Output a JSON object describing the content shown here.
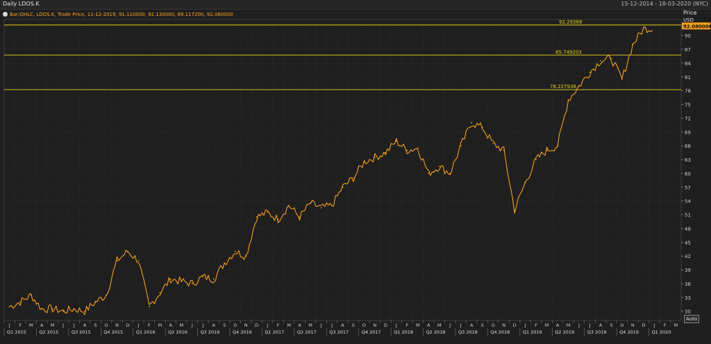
{
  "header": {
    "title": "Daily LDOS.K",
    "date_range": "15-12-2014 - 18-03-2020 (NYC)"
  },
  "legend": {
    "text": "Bar;OHLC, LDOS.K, Trade Price, 11-12-2019, 91.110000, 92.130000, 89.117200, 92.080000"
  },
  "axis": {
    "price_label": "Price",
    "currency_label": "USD",
    "auto_button": "Auto"
  },
  "colors": {
    "background": "#1f1f1f",
    "series": "#f7a01b",
    "hline": "#e8d21e",
    "grid": "#3a3a3a",
    "current_price_box": "#f7a01b"
  },
  "chart_data": {
    "type": "line",
    "series_name": "LDOS.K",
    "y_ticks": [
      30,
      33,
      36,
      39,
      42,
      45,
      48,
      51,
      54,
      57,
      60,
      63,
      66,
      69,
      72,
      75,
      78,
      81,
      84,
      87,
      90
    ],
    "ylim": [
      28,
      93.5
    ],
    "x_month_labels": [
      "J",
      "F",
      "M",
      "A",
      "M",
      "J",
      "J",
      "A",
      "S",
      "O",
      "N",
      "D",
      "J",
      "F",
      "M",
      "A",
      "M",
      "J",
      "J",
      "A",
      "S",
      "O",
      "N",
      "D",
      "J",
      "F",
      "M",
      "A",
      "M",
      "J",
      "J",
      "A",
      "S",
      "O",
      "N",
      "D",
      "J",
      "F",
      "M",
      "A",
      "M",
      "J",
      "J",
      "A",
      "S",
      "O",
      "N",
      "D",
      "J",
      "F",
      "M",
      "A",
      "M",
      "J",
      "J",
      "A",
      "S",
      "O",
      "N",
      "D",
      "J",
      "F",
      "M"
    ],
    "x_quarter_labels": [
      "Q1 2015",
      "Q2 2015",
      "Q3 2015",
      "Q4 2015",
      "Q1 2016",
      "Q2 2016",
      "Q3 2016",
      "Q4 2016",
      "Q1 2017",
      "Q2 2017",
      "Q3 2017",
      "Q4 2017",
      "Q1 2018",
      "Q2 2018",
      "Q3 2018",
      "Q4 2018",
      "Q1 2019",
      "Q2 2019",
      "Q3 2019",
      "Q4 2019",
      "Q1 2020"
    ],
    "horizontal_lines": [
      {
        "value": 92.29368,
        "label": "92.29368"
      },
      {
        "value": 85.749203,
        "label": "85.749203"
      },
      {
        "value": 78.227938,
        "label": "78.227938"
      }
    ],
    "current_price": {
      "value": 92.08,
      "label": "92.080000"
    },
    "monthly_close": [
      {
        "date": "2015-01",
        "value": 31.0
      },
      {
        "date": "2015-02",
        "value": 32.0
      },
      {
        "date": "2015-03",
        "value": 33.5
      },
      {
        "date": "2015-04",
        "value": 30.5
      },
      {
        "date": "2015-05",
        "value": 30.5
      },
      {
        "date": "2015-06",
        "value": 30.0
      },
      {
        "date": "2015-07",
        "value": 30.5
      },
      {
        "date": "2015-08",
        "value": 30.0
      },
      {
        "date": "2015-09",
        "value": 32.0
      },
      {
        "date": "2015-10",
        "value": 33.5
      },
      {
        "date": "2015-11",
        "value": 41.0
      },
      {
        "date": "2015-12",
        "value": 43.0
      },
      {
        "date": "2016-01",
        "value": 41.0
      },
      {
        "date": "2016-02",
        "value": 31.0
      },
      {
        "date": "2016-03",
        "value": 34.0
      },
      {
        "date": "2016-04",
        "value": 37.0
      },
      {
        "date": "2016-05",
        "value": 36.5
      },
      {
        "date": "2016-06",
        "value": 36.0
      },
      {
        "date": "2016-07",
        "value": 37.5
      },
      {
        "date": "2016-08",
        "value": 37.0
      },
      {
        "date": "2016-09",
        "value": 40.5
      },
      {
        "date": "2016-10",
        "value": 43.0
      },
      {
        "date": "2016-11",
        "value": 42.0
      },
      {
        "date": "2016-12",
        "value": 50.5
      },
      {
        "date": "2017-01",
        "value": 51.5
      },
      {
        "date": "2017-02",
        "value": 50.0
      },
      {
        "date": "2017-03",
        "value": 53.0
      },
      {
        "date": "2017-04",
        "value": 50.5
      },
      {
        "date": "2017-05",
        "value": 53.5
      },
      {
        "date": "2017-06",
        "value": 52.5
      },
      {
        "date": "2017-07",
        "value": 53.0
      },
      {
        "date": "2017-08",
        "value": 57.0
      },
      {
        "date": "2017-09",
        "value": 59.0
      },
      {
        "date": "2017-10",
        "value": 62.5
      },
      {
        "date": "2017-11",
        "value": 63.5
      },
      {
        "date": "2017-12",
        "value": 64.5
      },
      {
        "date": "2018-01",
        "value": 67.0
      },
      {
        "date": "2018-02",
        "value": 65.0
      },
      {
        "date": "2018-03",
        "value": 65.5
      },
      {
        "date": "2018-04",
        "value": 60.0
      },
      {
        "date": "2018-05",
        "value": 61.5
      },
      {
        "date": "2018-06",
        "value": 60.0
      },
      {
        "date": "2018-07",
        "value": 66.0
      },
      {
        "date": "2018-08",
        "value": 71.0
      },
      {
        "date": "2018-09",
        "value": 70.0
      },
      {
        "date": "2018-10",
        "value": 66.5
      },
      {
        "date": "2018-11",
        "value": 65.0
      },
      {
        "date": "2018-12",
        "value": 52.0
      },
      {
        "date": "2019-01",
        "value": 58.0
      },
      {
        "date": "2019-02",
        "value": 63.0
      },
      {
        "date": "2019-03",
        "value": 65.0
      },
      {
        "date": "2019-04",
        "value": 66.0
      },
      {
        "date": "2019-05",
        "value": 76.0
      },
      {
        "date": "2019-06",
        "value": 79.0
      },
      {
        "date": "2019-07",
        "value": 82.0
      },
      {
        "date": "2019-08",
        "value": 84.5
      },
      {
        "date": "2019-09",
        "value": 85.0
      },
      {
        "date": "2019-10",
        "value": 80.5
      },
      {
        "date": "2019-11",
        "value": 88.0
      },
      {
        "date": "2019-12",
        "value": 91.5
      }
    ]
  }
}
